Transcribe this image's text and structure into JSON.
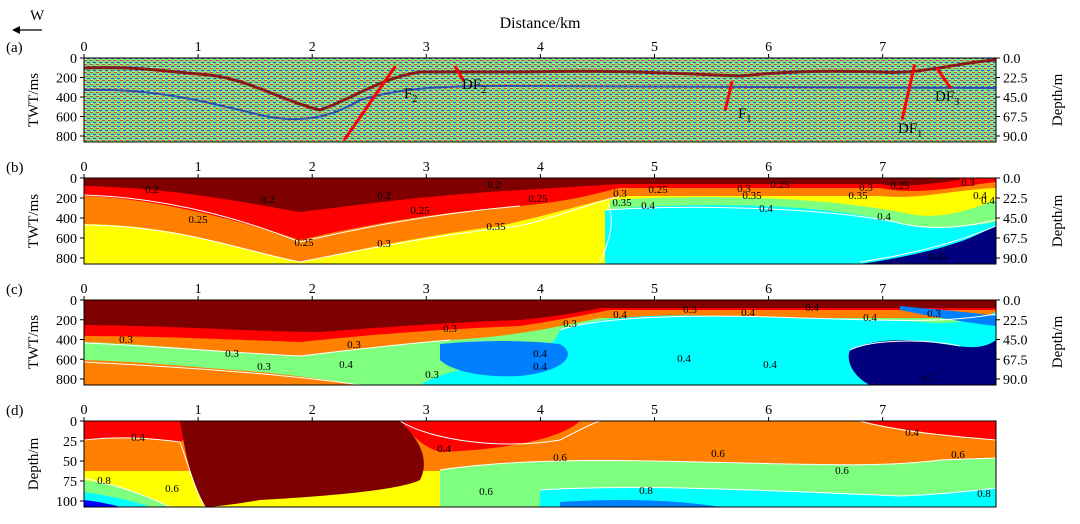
{
  "figure": {
    "direction_label": "W",
    "distance_label": "Distance/km",
    "distance_ticks": [
      "0",
      "1",
      "2",
      "3",
      "4",
      "5",
      "6",
      "7"
    ],
    "palette": [
      "#00007f",
      "#0000ff",
      "#007fff",
      "#00ffff",
      "#7fff7f",
      "#ffff00",
      "#ff7f00",
      "#ff0000",
      "#7f0000"
    ],
    "contour_color": "#ffffff",
    "fault_color": "#ff0000"
  },
  "panels": [
    {
      "id": "a",
      "label": "(a)",
      "type": "seismic_section",
      "ylabel": "TWT/ms",
      "y_ticks": [
        "0",
        "200",
        "400",
        "600",
        "800"
      ],
      "right_label": "Depth/m",
      "right_ticks": [
        "0.0",
        "22.5",
        "45.0",
        "67.5",
        "90.0"
      ],
      "faults": [
        {
          "name": "F",
          "sub": "2",
          "top": [
            2.73,
            85
          ],
          "bottom": [
            2.28,
            880
          ]
        },
        {
          "name": "DF",
          "sub": "2",
          "top": [
            3.25,
            85
          ],
          "bottom": [
            3.33,
            250
          ]
        },
        {
          "name": "F",
          "sub": "1",
          "top": [
            5.68,
            250
          ],
          "bottom": [
            5.62,
            560
          ]
        },
        {
          "name": "DF",
          "sub": "1",
          "top": [
            7.28,
            70
          ],
          "bottom": [
            7.17,
            660
          ]
        },
        {
          "name": "DF",
          "sub": "3",
          "top": [
            7.47,
            100
          ],
          "bottom": [
            7.6,
            330
          ]
        }
      ]
    },
    {
      "id": "b",
      "label": "(b)",
      "type": "velocity_section",
      "ylabel": "TWT/ms",
      "y_ticks": [
        "0",
        "200",
        "400",
        "600",
        "800"
      ],
      "right_label": "Depth/m",
      "right_ticks": [
        "0.0",
        "22.5",
        "45.0",
        "67.5",
        "90.0"
      ],
      "contour_labels": [
        "0.2",
        "0.2",
        "0.2",
        "0.2",
        "0.25",
        "0.25",
        "0.25",
        "0.25",
        "0.3",
        "0.25",
        "0.35",
        "0.4",
        "0.3",
        "0.35",
        "0.25",
        "0.4",
        "0.25",
        "0.3",
        "0.35",
        "0.4",
        "0.3",
        "0.3",
        "0.35",
        "0.4",
        "0.4",
        "0.45"
      ]
    },
    {
      "id": "c",
      "label": "(c)",
      "type": "velocity_section",
      "ylabel": "TWT/ms",
      "y_ticks": [
        "0",
        "200",
        "400",
        "600",
        "800"
      ],
      "right_label": "Depth/m",
      "right_ticks": [
        "0.0",
        "22.5",
        "45.0",
        "67.5",
        "90.0"
      ],
      "contour_labels": [
        "0.3",
        "0.3",
        "0.3",
        "0.3",
        "0.3",
        "0.3",
        "0.4",
        "0.3",
        "0.4",
        "0.4",
        "0.4",
        "0.3",
        "0.4",
        "0.4",
        "0.4",
        "0.3",
        "0.4",
        "0.4",
        "0.5"
      ]
    },
    {
      "id": "d",
      "label": "(d)",
      "type": "velocity_depth",
      "ylabel": "Depth/m",
      "y_ticks": [
        "0",
        "25",
        "50",
        "75",
        "100"
      ],
      "contour_labels": [
        "0.4",
        "0.8",
        "0.6",
        "0.4",
        "0.6",
        "0.6",
        "0.6",
        "0.8",
        "0.6",
        "0.4",
        "0.6",
        "0.8"
      ]
    }
  ]
}
